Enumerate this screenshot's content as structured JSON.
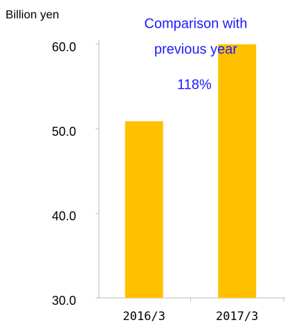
{
  "chart_data": {
    "type": "bar",
    "y_label": "Billion yen",
    "annotation": [
      "Comparison with",
      "previous year"
    ],
    "ratio_label": "118%",
    "categories": [
      "2016/3",
      "2017/3"
    ],
    "values": [
      50.9,
      60.0
    ],
    "color": "#ffc000",
    "ylim": [
      30,
      60
    ],
    "yticks": [
      {
        "value": 30,
        "label": "30.0"
      },
      {
        "value": 40,
        "label": "40.0"
      },
      {
        "value": 50,
        "label": "50.0"
      },
      {
        "value": 60,
        "label": "60.0"
      }
    ],
    "grid": false
  }
}
